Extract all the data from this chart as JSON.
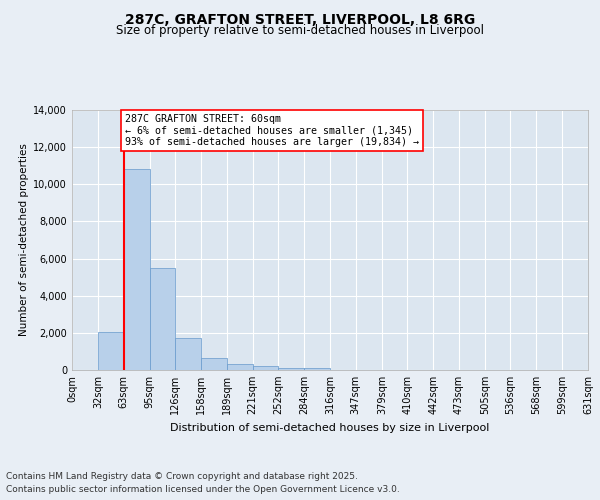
{
  "title1": "287C, GRAFTON STREET, LIVERPOOL, L8 6RG",
  "title2": "Size of property relative to semi-detached houses in Liverpool",
  "xlabel": "Distribution of semi-detached houses by size in Liverpool",
  "ylabel": "Number of semi-detached properties",
  "bin_labels": [
    "0sqm",
    "32sqm",
    "63sqm",
    "95sqm",
    "126sqm",
    "158sqm",
    "189sqm",
    "221sqm",
    "252sqm",
    "284sqm",
    "316sqm",
    "347sqm",
    "379sqm",
    "410sqm",
    "442sqm",
    "473sqm",
    "505sqm",
    "536sqm",
    "568sqm",
    "599sqm",
    "631sqm"
  ],
  "bin_edges": [
    0,
    32,
    63,
    95,
    126,
    158,
    189,
    221,
    252,
    284,
    316,
    347,
    379,
    410,
    442,
    473,
    505,
    536,
    568,
    599,
    631
  ],
  "bar_values": [
    0,
    2050,
    10800,
    5500,
    1750,
    620,
    310,
    190,
    130,
    110,
    0,
    0,
    0,
    0,
    0,
    0,
    0,
    0,
    0,
    0
  ],
  "bar_color": "#b8d0ea",
  "bar_edge_color": "#6699cc",
  "red_line_x": 63,
  "annotation_text": "287C GRAFTON STREET: 60sqm\n← 6% of semi-detached houses are smaller (1,345)\n93% of semi-detached houses are larger (19,834) →",
  "ylim": [
    0,
    14000
  ],
  "yticks": [
    0,
    2000,
    4000,
    6000,
    8000,
    10000,
    12000,
    14000
  ],
  "footnote1": "Contains HM Land Registry data © Crown copyright and database right 2025.",
  "footnote2": "Contains public sector information licensed under the Open Government Licence v3.0.",
  "bg_color": "#e8eef5",
  "plot_bg_color": "#dce6f0",
  "grid_color": "#ffffff"
}
